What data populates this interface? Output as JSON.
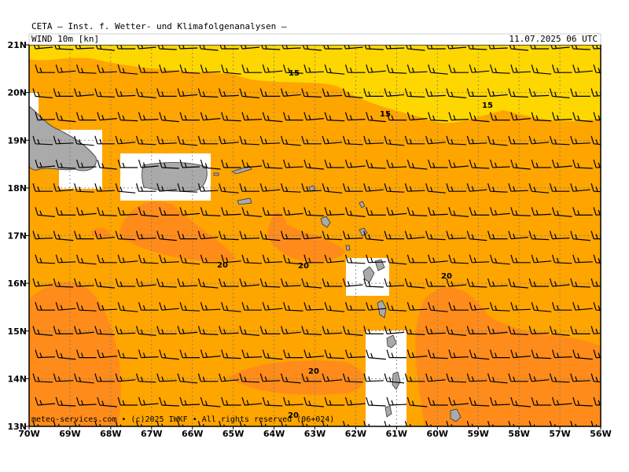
{
  "header": {
    "title": "CETA — Inst. f. Wetter- und Klimafolgenanalysen —"
  },
  "map": {
    "label": "WIND 10m [kn]",
    "valid_time": "11.07.2025 06 UTC",
    "lat_labels": [
      "21N",
      "20N",
      "19N",
      "18N",
      "17N",
      "16N",
      "15N",
      "14N",
      "13N"
    ],
    "lon_labels": [
      "70W",
      "69W",
      "68W",
      "67W",
      "66W",
      "65W",
      "64W",
      "63W",
      "62W",
      "61W",
      "60W",
      "59W",
      "58W",
      "57W",
      "56W"
    ],
    "contour_labels": [
      15,
      15,
      15,
      20,
      20,
      20,
      20,
      20
    ],
    "footer": "meteo-services.com • (c)2025 IWKF • All rights reserved (06+024)"
  }
}
